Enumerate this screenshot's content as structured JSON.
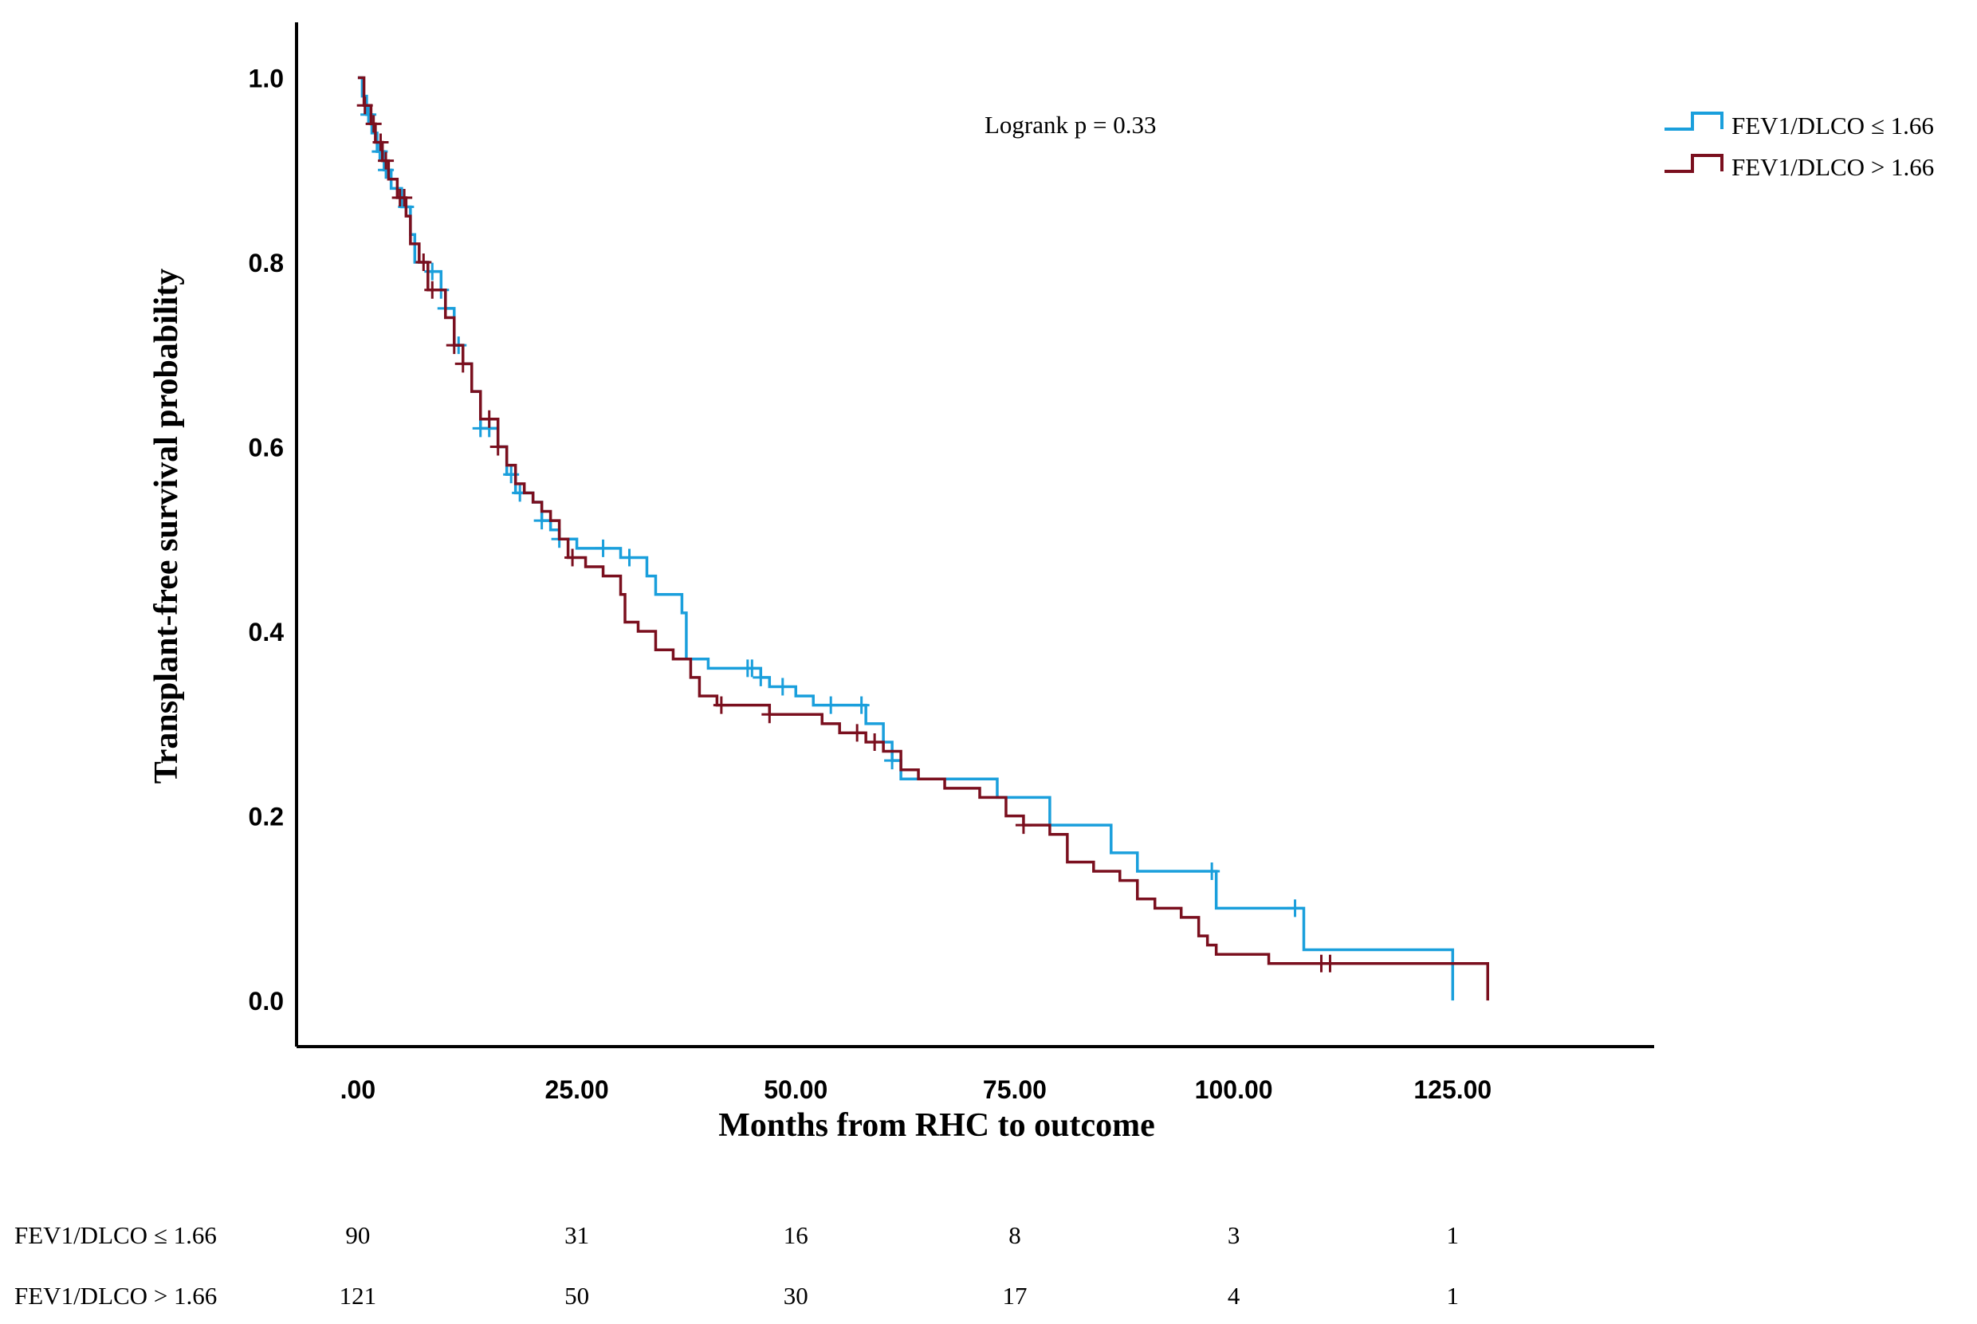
{
  "chart_data": {
    "type": "line",
    "subtype": "kaplan-meier",
    "xlabel": "Months from RHC to outcome",
    "ylabel": "Transplant-free survival probability",
    "xlim": [
      -7,
      148
    ],
    "ylim": [
      -0.05,
      1.06
    ],
    "x_ticks": [
      0,
      25,
      50,
      75,
      100,
      125
    ],
    "x_tick_labels": [
      ".00",
      "25.00",
      "50.00",
      "75.00",
      "100.00",
      "125.00"
    ],
    "y_ticks": [
      0,
      0.2,
      0.4,
      0.6,
      0.8,
      1.0
    ],
    "y_tick_labels": [
      "0.0",
      "0.2",
      "0.4",
      "0.6",
      "0.8",
      "1.0"
    ],
    "annotation": "Logrank p = 0.33",
    "legend_position": "top-right",
    "series": [
      {
        "name": "FEV1/DLCO ≤ 1.66",
        "color": "#1a9fdc",
        "steps": [
          [
            0,
            1.0
          ],
          [
            0.5,
            0.98
          ],
          [
            1,
            0.96
          ],
          [
            1.6,
            0.94
          ],
          [
            2.2,
            0.92
          ],
          [
            3,
            0.9
          ],
          [
            3.8,
            0.88
          ],
          [
            5,
            0.86
          ],
          [
            6,
            0.83
          ],
          [
            6.5,
            0.8
          ],
          [
            8,
            0.79
          ],
          [
            9.5,
            0.77
          ],
          [
            10,
            0.75
          ],
          [
            11,
            0.71
          ],
          [
            12,
            0.69
          ],
          [
            13,
            0.66
          ],
          [
            14,
            0.62
          ],
          [
            16,
            0.6
          ],
          [
            17,
            0.57
          ],
          [
            18,
            0.55
          ],
          [
            20,
            0.54
          ],
          [
            21,
            0.52
          ],
          [
            22,
            0.51
          ],
          [
            23,
            0.5
          ],
          [
            25,
            0.49
          ],
          [
            30,
            0.48
          ],
          [
            33,
            0.46
          ],
          [
            34,
            0.44
          ],
          [
            37,
            0.42
          ],
          [
            37.5,
            0.37
          ],
          [
            40,
            0.36
          ],
          [
            46,
            0.35
          ],
          [
            47,
            0.34
          ],
          [
            50,
            0.33
          ],
          [
            52,
            0.32
          ],
          [
            58,
            0.3
          ],
          [
            60,
            0.28
          ],
          [
            61,
            0.26
          ],
          [
            62,
            0.24
          ],
          [
            73,
            0.22
          ],
          [
            79,
            0.19
          ],
          [
            86,
            0.16
          ],
          [
            89,
            0.14
          ],
          [
            98,
            0.1
          ],
          [
            108,
            0.055
          ],
          [
            125,
            0.0
          ]
        ],
        "end_x": 125,
        "censor_x": [
          1.2,
          2.5,
          3.2,
          5.5,
          8.5,
          9.5,
          10,
          11.5,
          14,
          15,
          17.5,
          18.5,
          21,
          23,
          28,
          31,
          44.5,
          45,
          46,
          48.5,
          54,
          57.5,
          61,
          97.5,
          107
        ]
      },
      {
        "name": "FEV1/DLCO > 1.66",
        "color": "#7a0f1e",
        "steps": [
          [
            0,
            1.0
          ],
          [
            0.7,
            0.97
          ],
          [
            1.5,
            0.95
          ],
          [
            2,
            0.93
          ],
          [
            2.8,
            0.91
          ],
          [
            3.5,
            0.89
          ],
          [
            4.5,
            0.87
          ],
          [
            5.5,
            0.85
          ],
          [
            6,
            0.82
          ],
          [
            7,
            0.8
          ],
          [
            8,
            0.77
          ],
          [
            10,
            0.74
          ],
          [
            11,
            0.71
          ],
          [
            12,
            0.69
          ],
          [
            13,
            0.66
          ],
          [
            14,
            0.63
          ],
          [
            16,
            0.6
          ],
          [
            17,
            0.58
          ],
          [
            18,
            0.56
          ],
          [
            19,
            0.55
          ],
          [
            20,
            0.54
          ],
          [
            21,
            0.53
          ],
          [
            22,
            0.52
          ],
          [
            23,
            0.5
          ],
          [
            24,
            0.48
          ],
          [
            26,
            0.47
          ],
          [
            28,
            0.46
          ],
          [
            30,
            0.44
          ],
          [
            30.5,
            0.41
          ],
          [
            32,
            0.4
          ],
          [
            34,
            0.38
          ],
          [
            36,
            0.37
          ],
          [
            38,
            0.35
          ],
          [
            39,
            0.33
          ],
          [
            41,
            0.32
          ],
          [
            47,
            0.31
          ],
          [
            53,
            0.3
          ],
          [
            55,
            0.29
          ],
          [
            58,
            0.28
          ],
          [
            60,
            0.27
          ],
          [
            62,
            0.25
          ],
          [
            64,
            0.24
          ],
          [
            67,
            0.23
          ],
          [
            71,
            0.22
          ],
          [
            74,
            0.2
          ],
          [
            76,
            0.19
          ],
          [
            79,
            0.18
          ],
          [
            81,
            0.15
          ],
          [
            84,
            0.14
          ],
          [
            87,
            0.13
          ],
          [
            89,
            0.11
          ],
          [
            91,
            0.1
          ],
          [
            94,
            0.09
          ],
          [
            96,
            0.07
          ],
          [
            97,
            0.06
          ],
          [
            98,
            0.05
          ],
          [
            104,
            0.04
          ],
          [
            112,
            0.04
          ],
          [
            129,
            0.0
          ]
        ],
        "end_x": 129,
        "censor_x": [
          0.8,
          1.8,
          2.6,
          3.2,
          4.8,
          5.3,
          7.5,
          8.5,
          11,
          12,
          15,
          16,
          24.5,
          41.5,
          47,
          57,
          59,
          76,
          110,
          111
        ]
      }
    ]
  },
  "risk_table": {
    "rows": [
      {
        "label": "FEV1/DLCO ≤ 1.66",
        "counts": [
          "90",
          "31",
          "16",
          "8",
          "3",
          "1"
        ]
      },
      {
        "label": "FEV1/DLCO > 1.66",
        "counts": [
          "121",
          "50",
          "30",
          "17",
          "4",
          "1"
        ]
      }
    ]
  }
}
